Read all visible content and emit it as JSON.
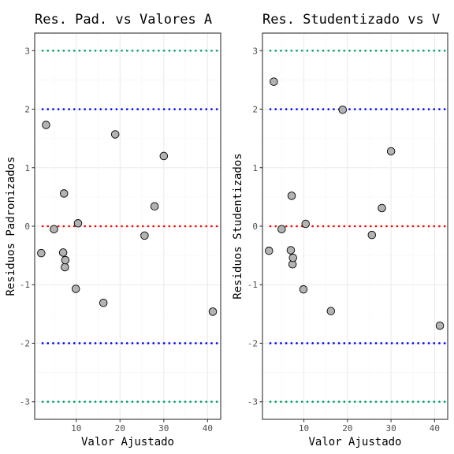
{
  "chart_data": [
    {
      "type": "scatter",
      "title": "Res. Pad. vs Valores A",
      "xlabel": "Valor Ajustado",
      "ylabel": "Residuos Padronizados",
      "xlim": [
        0.5,
        43
      ],
      "ylim": [
        -3.3,
        3.3
      ],
      "x_ticks": [
        10,
        20,
        30,
        40
      ],
      "y_ticks": [
        -3,
        -2,
        -1,
        0,
        1,
        2,
        3
      ],
      "points": [
        {
          "x": 2.0,
          "y": -0.46
        },
        {
          "x": 3.1,
          "y": 1.73
        },
        {
          "x": 4.9,
          "y": -0.05
        },
        {
          "x": 7.0,
          "y": -0.45
        },
        {
          "x": 7.2,
          "y": 0.56
        },
        {
          "x": 7.4,
          "y": -0.7
        },
        {
          "x": 7.5,
          "y": -0.58
        },
        {
          "x": 9.9,
          "y": -1.07
        },
        {
          "x": 10.4,
          "y": 0.05
        },
        {
          "x": 16.2,
          "y": -1.31
        },
        {
          "x": 18.9,
          "y": 1.57
        },
        {
          "x": 25.6,
          "y": -0.16
        },
        {
          "x": 27.9,
          "y": 0.34
        },
        {
          "x": 30.0,
          "y": 1.2
        },
        {
          "x": 41.2,
          "y": -1.46
        }
      ],
      "reference_lines": [
        {
          "y": 3,
          "color": "#00a070"
        },
        {
          "y": 2,
          "color": "#0000ff"
        },
        {
          "y": 0,
          "color": "#ff0000"
        },
        {
          "y": -2,
          "color": "#0000ff"
        },
        {
          "y": -3,
          "color": "#00a070"
        }
      ]
    },
    {
      "type": "scatter",
      "title": "Res. Studentizado vs V",
      "xlabel": "Valor Ajustado",
      "ylabel": "Residuos Studentizados",
      "xlim": [
        0.5,
        43
      ],
      "ylim": [
        -3.3,
        3.3
      ],
      "x_ticks": [
        10,
        20,
        30,
        40
      ],
      "y_ticks": [
        -3,
        -2,
        -1,
        0,
        1,
        2,
        3
      ],
      "points": [
        {
          "x": 2.0,
          "y": -0.42
        },
        {
          "x": 3.1,
          "y": 2.47
        },
        {
          "x": 4.9,
          "y": -0.05
        },
        {
          "x": 7.0,
          "y": -0.41
        },
        {
          "x": 7.2,
          "y": 0.52
        },
        {
          "x": 7.4,
          "y": -0.65
        },
        {
          "x": 7.5,
          "y": -0.54
        },
        {
          "x": 9.9,
          "y": -1.08
        },
        {
          "x": 10.4,
          "y": 0.04
        },
        {
          "x": 16.2,
          "y": -1.45
        },
        {
          "x": 18.9,
          "y": 1.99
        },
        {
          "x": 25.6,
          "y": -0.15
        },
        {
          "x": 27.9,
          "y": 0.31
        },
        {
          "x": 30.0,
          "y": 1.28
        },
        {
          "x": 41.2,
          "y": -1.7
        }
      ],
      "reference_lines": [
        {
          "y": 3,
          "color": "#00a070"
        },
        {
          "y": 2,
          "color": "#0000ff"
        },
        {
          "y": 0,
          "color": "#ff0000"
        },
        {
          "y": -2,
          "color": "#0000ff"
        },
        {
          "y": -3,
          "color": "#00a070"
        }
      ]
    }
  ],
  "style": {
    "point_fill": "#b3b3b3",
    "point_stroke": "#000000",
    "grid_major": "#ebebeb",
    "grid_minor": "#f5f5f5",
    "panel_border": "#333333"
  }
}
